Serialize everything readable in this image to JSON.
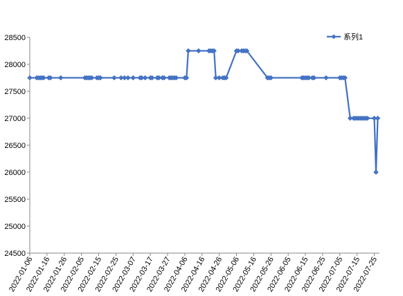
{
  "chart_data": {
    "type": "line",
    "title": "",
    "xlabel": "",
    "ylabel": "",
    "ylim": [
      24500,
      28500
    ],
    "y_ticks": [
      24500,
      25000,
      25500,
      26000,
      26500,
      27000,
      27500,
      28000,
      28500
    ],
    "x_tick_labels": [
      "2022-01-06",
      "2022-01-16",
      "2022-01-26",
      "2022-02-05",
      "2022-02-15",
      "2022-02-25",
      "2022-03-07",
      "2022-03-17",
      "2022-03-27",
      "2022-04-06",
      "2022-04-16",
      "2022-04-26",
      "2022-05-06",
      "2022-05-16",
      "2022-05-26",
      "2022-06-05",
      "2022-06-15",
      "2022-06-25",
      "2022-07-05",
      "2022-07-15",
      "2022-07-25"
    ],
    "x_range": [
      "2022-01-06",
      "2022-07-28"
    ],
    "grid": false,
    "legend_position": "top-right",
    "line_color": "#4472C4",
    "series": [
      {
        "name": "系列1",
        "points": [
          [
            "2022-01-06",
            27750
          ],
          [
            "2022-01-10",
            27750
          ],
          [
            "2022-01-11",
            27750
          ],
          [
            "2022-01-12",
            27750
          ],
          [
            "2022-01-13",
            27750
          ],
          [
            "2022-01-14",
            27750
          ],
          [
            "2022-01-17",
            27750
          ],
          [
            "2022-01-18",
            27750
          ],
          [
            "2022-01-24",
            27750
          ],
          [
            "2022-02-07",
            27750
          ],
          [
            "2022-02-08",
            27750
          ],
          [
            "2022-02-09",
            27750
          ],
          [
            "2022-02-10",
            27750
          ],
          [
            "2022-02-11",
            27750
          ],
          [
            "2022-02-14",
            27750
          ],
          [
            "2022-02-15",
            27750
          ],
          [
            "2022-02-16",
            27750
          ],
          [
            "2022-02-24",
            27750
          ],
          [
            "2022-02-28",
            27750
          ],
          [
            "2022-03-02",
            27750
          ],
          [
            "2022-03-04",
            27750
          ],
          [
            "2022-03-07",
            27750
          ],
          [
            "2022-03-11",
            27750
          ],
          [
            "2022-03-12",
            27750
          ],
          [
            "2022-03-14",
            27750
          ],
          [
            "2022-03-17",
            27750
          ],
          [
            "2022-03-18",
            27750
          ],
          [
            "2022-03-21",
            27750
          ],
          [
            "2022-03-22",
            27750
          ],
          [
            "2022-03-24",
            27750
          ],
          [
            "2022-03-25",
            27750
          ],
          [
            "2022-03-28",
            27750
          ],
          [
            "2022-03-29",
            27750
          ],
          [
            "2022-03-30",
            27750
          ],
          [
            "2022-03-31",
            27750
          ],
          [
            "2022-04-01",
            27750
          ],
          [
            "2022-04-06",
            27750
          ],
          [
            "2022-04-07",
            27750
          ],
          [
            "2022-04-08",
            28250
          ],
          [
            "2022-04-14",
            28250
          ],
          [
            "2022-04-20",
            28250
          ],
          [
            "2022-04-21",
            28250
          ],
          [
            "2022-04-22",
            28250
          ],
          [
            "2022-04-23",
            28250
          ],
          [
            "2022-04-24",
            27750
          ],
          [
            "2022-04-26",
            27750
          ],
          [
            "2022-04-28",
            27750
          ],
          [
            "2022-04-29",
            27750
          ],
          [
            "2022-04-30",
            27750
          ],
          [
            "2022-05-06",
            28250
          ],
          [
            "2022-05-07",
            28250
          ],
          [
            "2022-05-09",
            28250
          ],
          [
            "2022-05-10",
            28250
          ],
          [
            "2022-05-11",
            28250
          ],
          [
            "2022-05-12",
            28250
          ],
          [
            "2022-05-24",
            27750
          ],
          [
            "2022-05-25",
            27750
          ],
          [
            "2022-05-26",
            27750
          ],
          [
            "2022-06-13",
            27750
          ],
          [
            "2022-06-14",
            27750
          ],
          [
            "2022-06-15",
            27750
          ],
          [
            "2022-06-16",
            27750
          ],
          [
            "2022-06-17",
            27750
          ],
          [
            "2022-06-19",
            27750
          ],
          [
            "2022-06-20",
            27750
          ],
          [
            "2022-06-27",
            27750
          ],
          [
            "2022-07-05",
            27750
          ],
          [
            "2022-07-06",
            27750
          ],
          [
            "2022-07-07",
            27750
          ],
          [
            "2022-07-08",
            27750
          ],
          [
            "2022-07-11",
            27000
          ],
          [
            "2022-07-13",
            27000
          ],
          [
            "2022-07-14",
            27000
          ],
          [
            "2022-07-15",
            27000
          ],
          [
            "2022-07-16",
            27000
          ],
          [
            "2022-07-17",
            27000
          ],
          [
            "2022-07-18",
            27000
          ],
          [
            "2022-07-19",
            27000
          ],
          [
            "2022-07-20",
            27000
          ],
          [
            "2022-07-21",
            27000
          ],
          [
            "2022-07-25",
            27000
          ],
          [
            "2022-07-26",
            26000
          ],
          [
            "2022-07-27",
            27000
          ]
        ]
      }
    ]
  }
}
